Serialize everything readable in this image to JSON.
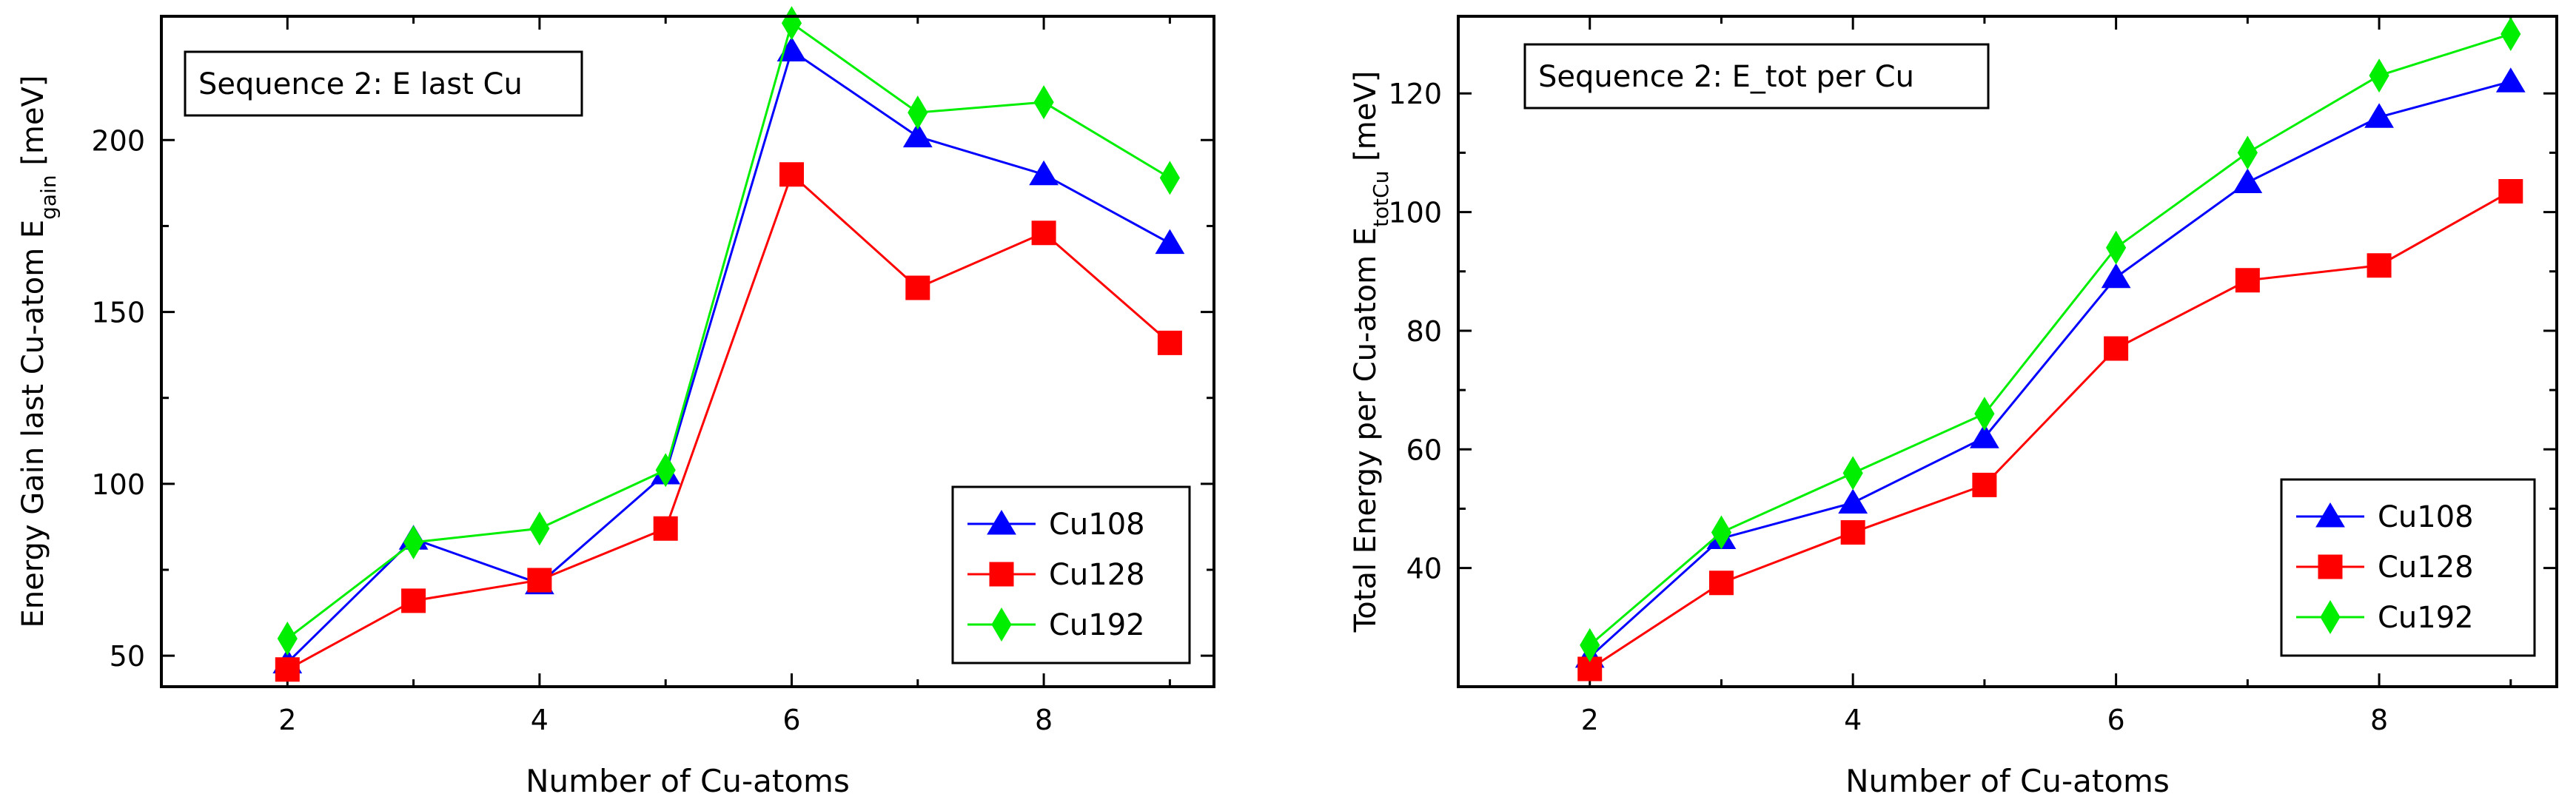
{
  "chart_data": [
    {
      "type": "line",
      "title": "Sequence 2: E last Cu",
      "xlabel": "Number of Cu-atoms",
      "ylabel": "Energy Gain last Cu-atom E",
      "ylabel_sub": "gain",
      "ylabel_unit": " [meV]",
      "xlim": [
        1.0,
        9.35
      ],
      "ylim": [
        41,
        236
      ],
      "xticks": [
        2,
        4,
        6,
        8
      ],
      "yticks": [
        50,
        100,
        150,
        200
      ],
      "legend_position": "bottom-right",
      "x": [
        2,
        3,
        4,
        5,
        6,
        7,
        8,
        9
      ],
      "series": [
        {
          "name": "Cu108",
          "color": "#0000ff",
          "marker": "triangle",
          "values": [
            48,
            84,
            71,
            103,
            226,
            201,
            190,
            170
          ]
        },
        {
          "name": "Cu128",
          "color": "#ff0000",
          "marker": "square",
          "values": [
            46,
            66,
            72,
            87,
            190,
            157,
            173,
            141
          ]
        },
        {
          "name": "Cu192",
          "color": "#00ee00",
          "marker": "diamond",
          "values": [
            55,
            83,
            87,
            104,
            234,
            208,
            211,
            189
          ]
        }
      ]
    },
    {
      "type": "line",
      "title": "Sequence 2: E_tot per Cu",
      "xlabel": "Number of Cu-atoms",
      "ylabel": "Total Energy per Cu-atom E",
      "ylabel_sub": "totCu",
      "ylabel_unit": " [meV]",
      "xlim": [
        1.0,
        9.35
      ],
      "ylim": [
        20,
        133
      ],
      "xticks": [
        2,
        4,
        6,
        8
      ],
      "yticks": [
        40,
        60,
        80,
        100,
        120
      ],
      "legend_position": "bottom-right",
      "x": [
        2,
        3,
        4,
        5,
        6,
        7,
        8,
        9
      ],
      "series": [
        {
          "name": "Cu108",
          "color": "#0000ff",
          "marker": "triangle",
          "values": [
            25,
            45,
            51,
            62,
            89,
            105,
            116,
            122
          ]
        },
        {
          "name": "Cu128",
          "color": "#ff0000",
          "marker": "square",
          "values": [
            23,
            37.5,
            46,
            54,
            77,
            88.5,
            91,
            103.5
          ]
        },
        {
          "name": "Cu192",
          "color": "#00ee00",
          "marker": "diamond",
          "values": [
            27,
            46,
            56,
            66,
            94,
            110,
            123,
            130
          ]
        }
      ]
    }
  ]
}
